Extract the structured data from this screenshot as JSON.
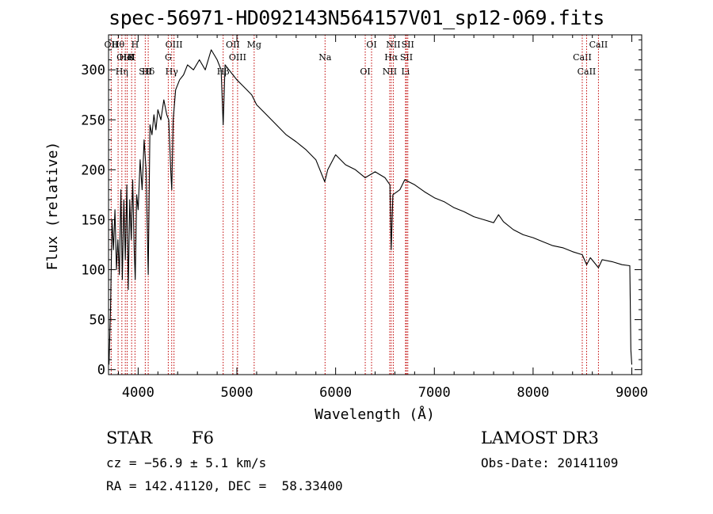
{
  "title": "spec-56971-HD092143N564157V01_sp12-069.fits",
  "info": {
    "object_class": "STAR",
    "subclass": "F6",
    "survey": "LAMOST DR3",
    "cz": "cz = −56.9 ± 5.1 km/s",
    "obs_date": "Obs-Date: 20141109",
    "radec": "RA = 142.41120, DEC =  58.33400"
  },
  "chart_data": {
    "type": "line",
    "title": "spec-56971-HD092143N564157V01_sp12-069.fits",
    "xlabel": "Wavelength (Å)",
    "ylabel": "Flux (relative)",
    "xlim": [
      3700,
      9100
    ],
    "ylim": [
      -5,
      335
    ],
    "xticks": [
      4000,
      5000,
      6000,
      7000,
      8000,
      9000
    ],
    "yticks": [
      0,
      50,
      100,
      150,
      200,
      250,
      300
    ],
    "series": [
      {
        "name": "flux",
        "x": [
          3705,
          3720,
          3735,
          3750,
          3765,
          3780,
          3795,
          3810,
          3825,
          3840,
          3855,
          3870,
          3885,
          3900,
          3915,
          3930,
          3945,
          3960,
          3970,
          3985,
          4000,
          4020,
          4040,
          4060,
          4080,
          4102,
          4120,
          4140,
          4160,
          4180,
          4200,
          4230,
          4260,
          4290,
          4310,
          4330,
          4340,
          4355,
          4380,
          4420,
          4460,
          4500,
          4560,
          4620,
          4680,
          4740,
          4800,
          4840,
          4861,
          4880,
          4920,
          4960,
          5000,
          5050,
          5100,
          5150,
          5200,
          5300,
          5400,
          5500,
          5600,
          5700,
          5800,
          5890,
          5920,
          6000,
          6100,
          6200,
          6300,
          6400,
          6450,
          6500,
          6550,
          6563,
          6580,
          6650,
          6700,
          6800,
          6900,
          7000,
          7100,
          7200,
          7300,
          7400,
          7500,
          7600,
          7650,
          7700,
          7800,
          7900,
          8000,
          8100,
          8200,
          8300,
          8400,
          8498,
          8520,
          8542,
          8580,
          8662,
          8700,
          8800,
          8900,
          8980,
          8990,
          9000
        ],
        "y": [
          5,
          60,
          150,
          120,
          160,
          100,
          130,
          95,
          180,
          90,
          170,
          110,
          185,
          80,
          170,
          130,
          190,
          120,
          90,
          175,
          160,
          210,
          180,
          230,
          200,
          95,
          245,
          235,
          255,
          240,
          260,
          250,
          270,
          255,
          250,
          200,
          180,
          250,
          280,
          290,
          295,
          305,
          300,
          310,
          300,
          320,
          310,
          300,
          245,
          305,
          300,
          295,
          290,
          285,
          280,
          275,
          265,
          255,
          245,
          235,
          228,
          220,
          210,
          188,
          200,
          215,
          205,
          200,
          192,
          198,
          195,
          192,
          185,
          120,
          175,
          180,
          190,
          185,
          178,
          172,
          168,
          162,
          158,
          153,
          150,
          147,
          155,
          148,
          140,
          135,
          132,
          128,
          124,
          122,
          118,
          115,
          110,
          105,
          112,
          102,
          110,
          108,
          105,
          104,
          20,
          5
        ]
      }
    ],
    "line_markers": [
      {
        "label": "Hθ",
        "wl": 3797
      },
      {
        "label": "K",
        "wl": 3934
      },
      {
        "label": "Hδ",
        "wl": 4102
      },
      {
        "label": "OII",
        "wl": 3727
      },
      {
        "label": "HeI",
        "wl": 3889
      },
      {
        "label": "SII",
        "wl": 4072
      },
      {
        "label": "OIII",
        "wl": 4363
      },
      {
        "label": "OIII",
        "wl": 5007
      },
      {
        "label": "Hγ",
        "wl": 4340
      },
      {
        "label": "OII",
        "wl": 4959
      },
      {
        "label": "OIII",
        "wl": 3870
      },
      {
        "label": "Hη",
        "wl": 3835
      },
      {
        "label": "H",
        "wl": 3968
      },
      {
        "label": "G",
        "wl": 4305
      },
      {
        "label": "Hβ",
        "wl": 4861
      },
      {
        "label": "Mg",
        "wl": 5175
      },
      {
        "label": "Na",
        "wl": 5893
      },
      {
        "label": "OI",
        "wl": 6300
      },
      {
        "label": "OI",
        "wl": 6364
      },
      {
        "label": "Hα",
        "wl": 6563
      },
      {
        "label": "NII",
        "wl": 6548
      },
      {
        "label": "NII",
        "wl": 6584
      },
      {
        "label": "SII",
        "wl": 6717
      },
      {
        "label": "Li",
        "wl": 6708
      },
      {
        "label": "SII",
        "wl": 6731
      },
      {
        "label": "CaII",
        "wl": 8498
      },
      {
        "label": "CaII",
        "wl": 8542
      },
      {
        "label": "CaII",
        "wl": 8662
      }
    ]
  }
}
